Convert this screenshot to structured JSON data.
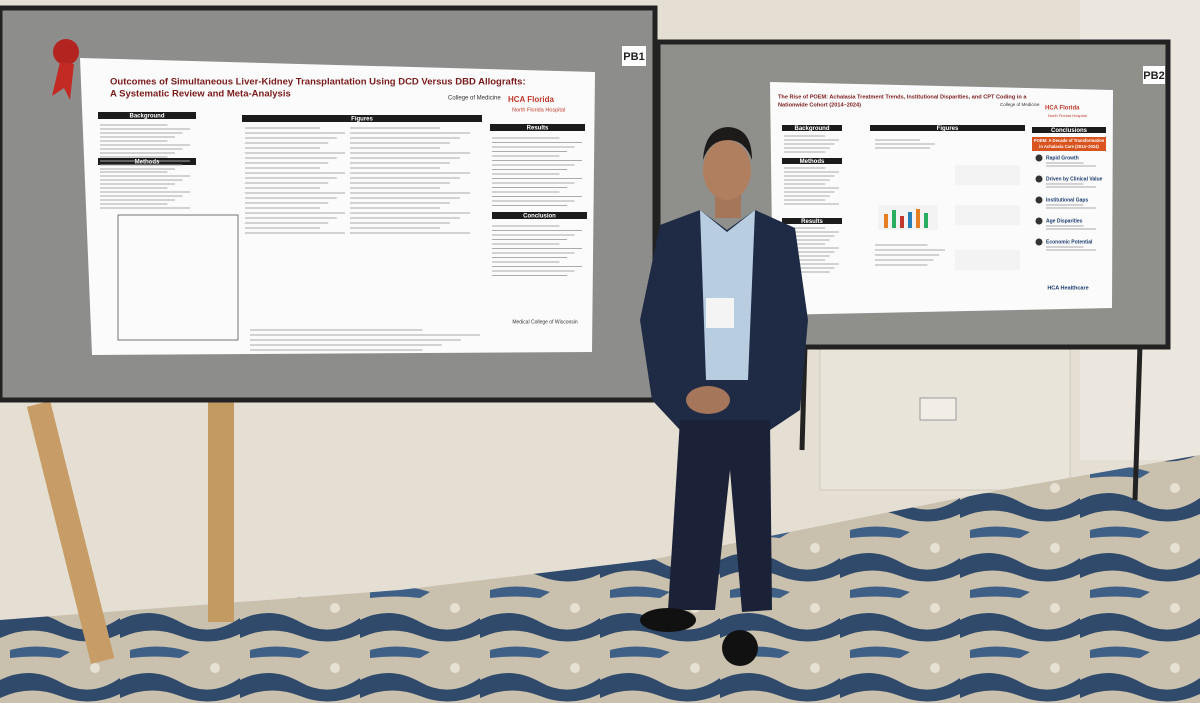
{
  "boards": [
    {
      "label": "PB1",
      "poster": {
        "title_lines": [
          "Outcomes of Simultaneous Liver-Kidney Transplantation Using DCD Versus DBD Allografts:",
          "A Systematic Review and Meta-Analysis"
        ],
        "sections": [
          "Background",
          "Figures",
          "Results",
          "Methods",
          "Conclusion"
        ],
        "logos": [
          "College of Medicine",
          "HCA Florida",
          "North Florida Hospital",
          "Medical College of Wisconsin"
        ]
      }
    },
    {
      "label": "PB2",
      "poster": {
        "title_lines": [
          "The Rise of POEM: Achalasia Treatment Trends, Institutional Disparities, and CPT Coding in a",
          "Nationwide Cohort (2014–2024)"
        ],
        "sections": [
          "Background",
          "Figures",
          "Conclusions",
          "Methods",
          "Results"
        ],
        "conclusion_box": [
          "POEM: A Decade of Transformation",
          "in Achalasia Care (2014–2024)"
        ],
        "conclusion_items": [
          "Rapid Growth",
          "Driven by Clinical Value",
          "Institutional Gaps",
          "Age Disparities",
          "Economic Potential"
        ],
        "logos": [
          "College of Medicine",
          "HCA Florida",
          "North Florida Hospital",
          "HCA Healthcare"
        ]
      }
    }
  ]
}
